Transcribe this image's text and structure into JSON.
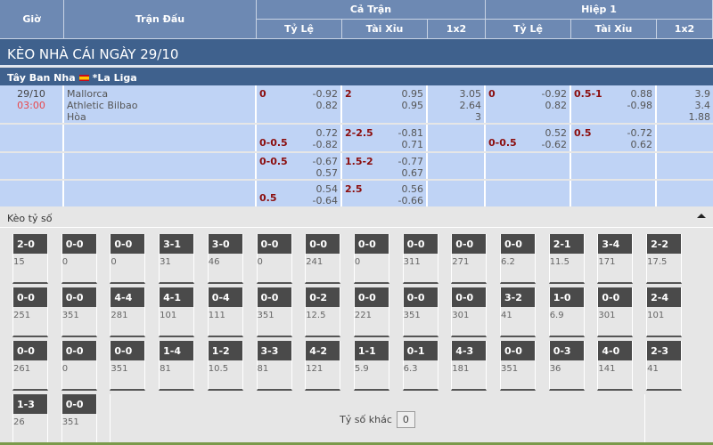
{
  "header": {
    "gio": "Giờ",
    "tran_dau": "Trận Đấu",
    "ca_tran": "Cả Trận",
    "hiep1": "Hiệp 1",
    "ty_le": "Tỷ Lệ",
    "tai_xiu": "Tài Xỉu",
    "x12": "1x2"
  },
  "title": "KÈO NHÀ CÁI NGÀY 29/10",
  "league": {
    "country": "Tây Ban Nha",
    "name": "*La Liga",
    "flag_icon": "spain-flag-icon"
  },
  "match": {
    "date": "29/10",
    "time": "03:00",
    "home": "Mallorca",
    "away": "Athletic Bilbao",
    "draw": "Hòa",
    "time_color": "#e8484d"
  },
  "odds_rows": [
    {
      "hc": {
        "line": "0",
        "pos": "top",
        "odds": [
          "-0.92",
          "0.82"
        ]
      },
      "ou": {
        "line": "2",
        "pos": "top",
        "odds": [
          "0.95",
          "0.95"
        ]
      },
      "x12": [
        "3.05",
        "2.64",
        "3"
      ],
      "h1hc": {
        "line": "0",
        "pos": "top",
        "odds": [
          "-0.92",
          "0.82"
        ]
      },
      "h1ou": {
        "line": "0.5-1",
        "pos": "top",
        "odds": [
          "0.88",
          "-0.98"
        ]
      },
      "h1x12": [
        "3.9",
        "3.4",
        "1.88"
      ]
    },
    {
      "hc": {
        "line": "0-0.5",
        "pos": "bottom",
        "odds": [
          "0.72",
          "-0.82"
        ]
      },
      "ou": {
        "line": "2-2.5",
        "pos": "top",
        "odds": [
          "-0.81",
          "0.71"
        ]
      },
      "x12": [],
      "h1hc": {
        "line": "0-0.5",
        "pos": "bottom",
        "odds": [
          "0.52",
          "-0.62"
        ]
      },
      "h1ou": {
        "line": "0.5",
        "pos": "top",
        "odds": [
          "-0.72",
          "0.62"
        ]
      },
      "h1x12": []
    },
    {
      "hc": {
        "line": "0-0.5",
        "pos": "top",
        "odds": [
          "-0.67",
          "0.57"
        ]
      },
      "ou": {
        "line": "1.5-2",
        "pos": "top",
        "odds": [
          "-0.77",
          "0.67"
        ]
      },
      "x12": [],
      "h1hc": null,
      "h1ou": null,
      "h1x12": []
    },
    {
      "hc": {
        "line": "0.5",
        "pos": "bottom",
        "odds": [
          "0.54",
          "-0.64"
        ]
      },
      "ou": {
        "line": "2.5",
        "pos": "top",
        "odds": [
          "0.56",
          "-0.66"
        ]
      },
      "x12": [],
      "h1hc": null,
      "h1ou": null,
      "h1x12": []
    }
  ],
  "correct_score": {
    "title": "Kèo tỷ số",
    "collapse_icon": "caret-up-icon",
    "items": [
      [
        "2-0",
        "15"
      ],
      [
        "0-0",
        "0"
      ],
      [
        "0-0",
        "0"
      ],
      [
        "3-1",
        "31"
      ],
      [
        "3-0",
        "46"
      ],
      [
        "0-0",
        "0"
      ],
      [
        "0-0",
        "241"
      ],
      [
        "0-0",
        "0"
      ],
      [
        "0-0",
        "311"
      ],
      [
        "0-0",
        "271"
      ],
      [
        "0-0",
        "6.2"
      ],
      [
        "2-1",
        "11.5"
      ],
      [
        "3-4",
        "171"
      ],
      [
        "2-2",
        "17.5"
      ],
      [
        "0-0",
        "251"
      ],
      [
        "0-0",
        "351"
      ],
      [
        "4-4",
        "281"
      ],
      [
        "4-1",
        "101"
      ],
      [
        "0-4",
        "111"
      ],
      [
        "0-0",
        "351"
      ],
      [
        "0-2",
        "12.5"
      ],
      [
        "0-0",
        "221"
      ],
      [
        "0-0",
        "351"
      ],
      [
        "0-0",
        "301"
      ],
      [
        "3-2",
        "41"
      ],
      [
        "1-0",
        "6.9"
      ],
      [
        "0-0",
        "301"
      ],
      [
        "2-4",
        "101"
      ],
      [
        "0-0",
        "261"
      ],
      [
        "0-0",
        "0"
      ],
      [
        "0-0",
        "351"
      ],
      [
        "1-4",
        "81"
      ],
      [
        "1-2",
        "10.5"
      ],
      [
        "3-3",
        "81"
      ],
      [
        "4-2",
        "121"
      ],
      [
        "1-1",
        "5.9"
      ],
      [
        "0-1",
        "6.3"
      ],
      [
        "4-3",
        "181"
      ],
      [
        "0-0",
        "351"
      ],
      [
        "0-3",
        "36"
      ],
      [
        "4-0",
        "141"
      ],
      [
        "2-3",
        "41"
      ],
      [
        "1-3",
        "26"
      ],
      [
        "0-0",
        "351"
      ]
    ],
    "other_label": "Tỷ số khác",
    "other_value": "0"
  }
}
